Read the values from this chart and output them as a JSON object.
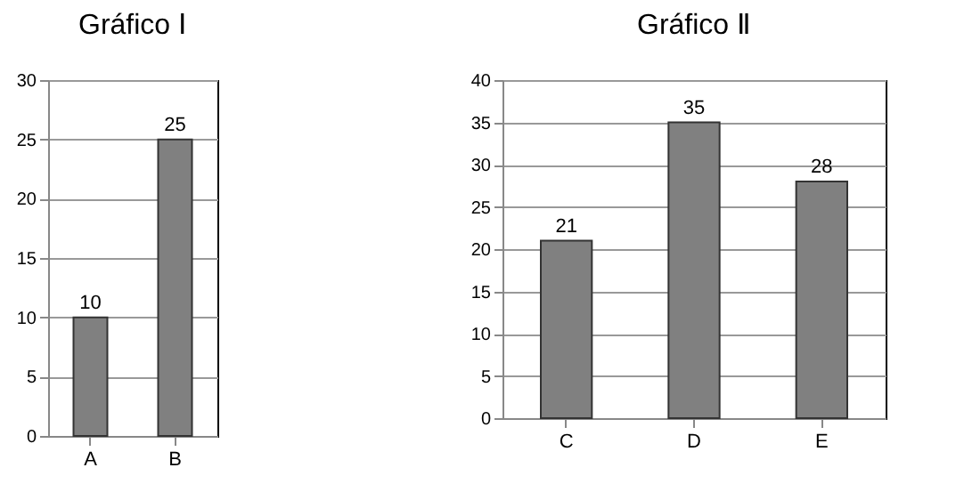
{
  "chart_data": [
    {
      "type": "bar",
      "title": "Gráfico Ⅰ",
      "categories": [
        "A",
        "B"
      ],
      "values": [
        10,
        25
      ],
      "color": "#808080",
      "ylim": [
        0,
        30
      ],
      "yticks": [
        0,
        5,
        10,
        15,
        20,
        25,
        30
      ],
      "grid": "y",
      "data_labels": true
    },
    {
      "type": "bar",
      "title": "Gráfico Ⅱ",
      "categories": [
        "C",
        "D",
        "E"
      ],
      "values": [
        21,
        35,
        28
      ],
      "color": "#808080",
      "ylim": [
        0,
        40
      ],
      "yticks": [
        0,
        5,
        10,
        15,
        20,
        25,
        30,
        35,
        40
      ],
      "grid": "y",
      "data_labels": true
    }
  ]
}
